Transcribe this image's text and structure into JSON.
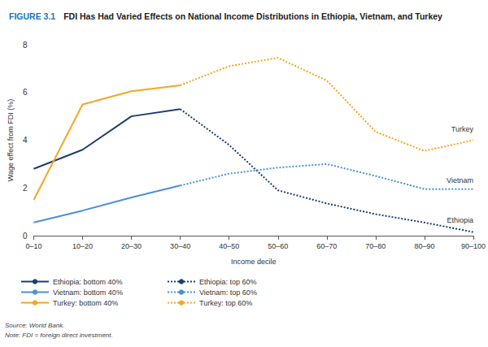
{
  "chart_data": {
    "type": "line",
    "figure_label": "FIGURE 3.1",
    "title": "FDI Has Had Varied Effects on National Income Distributions in Ethiopia, Vietnam, and Turkey",
    "x_label": "Income decile",
    "y_label": "Wage effect from FDI (%)",
    "categories": [
      "0–10",
      "10–20",
      "20–30",
      "30–40",
      "40–50",
      "50–60",
      "60–70",
      "70–80",
      "80–90",
      "90–100"
    ],
    "series": [
      {
        "name": "Ethiopia: bottom 40%",
        "color": "#1c3f6e",
        "line_style": "solid",
        "values": [
          2.8,
          3.6,
          5.0,
          5.3,
          null,
          null,
          null,
          null,
          null,
          null
        ]
      },
      {
        "name": "Vietnam: bottom 40%",
        "color": "#4a90d9",
        "line_style": "solid",
        "values": [
          0.55,
          1.05,
          1.6,
          2.1,
          null,
          null,
          null,
          null,
          null,
          null
        ]
      },
      {
        "name": "Turkey: bottom 40%",
        "color": "#f5a623",
        "line_style": "solid",
        "values": [
          1.5,
          5.5,
          6.05,
          6.3,
          null,
          null,
          null,
          null,
          null,
          null
        ]
      },
      {
        "name": "Ethiopia: top 60%",
        "color": "#1c3f6e",
        "line_style": "dotted",
        "values": [
          null,
          null,
          null,
          5.3,
          3.8,
          1.9,
          1.35,
          0.9,
          0.55,
          0.15
        ]
      },
      {
        "name": "Vietnam: top 60%",
        "color": "#4a90d9",
        "line_style": "dotted",
        "values": [
          null,
          null,
          null,
          2.1,
          2.6,
          2.85,
          3.0,
          2.5,
          1.95,
          1.95
        ]
      },
      {
        "name": "Turkey: top 60%",
        "color": "#f5a623",
        "line_style": "dotted",
        "values": [
          null,
          null,
          null,
          6.3,
          7.1,
          7.45,
          6.5,
          4.35,
          3.55,
          4.0
        ]
      }
    ],
    "annotations": [
      {
        "text": "Turkey",
        "x": "90–100",
        "y": 4.45
      },
      {
        "text": "Vietnam",
        "x": "90–100",
        "y": 2.3
      },
      {
        "text": "Ethiopia",
        "x": "90–100",
        "y": 0.65
      }
    ],
    "ylim": [
      0,
      8
    ],
    "yticks": [
      0,
      2,
      4,
      6,
      8
    ],
    "grid": false,
    "legend": "bottom-left",
    "source": "Source: World Bank.",
    "note": "Note: FDI = foreign direct investment."
  }
}
